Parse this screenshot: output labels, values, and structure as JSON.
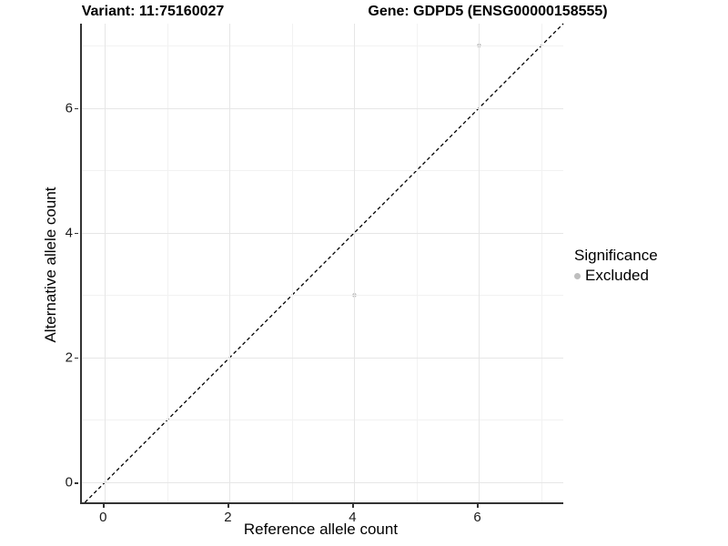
{
  "titles": {
    "variant": "Variant: 11:75160027",
    "gene": "Gene: GDPD5 (ENSG00000158555)"
  },
  "chart_data": {
    "type": "scatter",
    "xlabel": "Reference allele count",
    "ylabel": "Alternative allele count",
    "xlim": [
      -0.37,
      7.35
    ],
    "ylim": [
      -0.32,
      7.35
    ],
    "x_major_ticks": [
      0,
      2,
      4,
      6
    ],
    "y_major_ticks": [
      0,
      2,
      4,
      6
    ],
    "x_minor_gridlines": [
      1,
      3,
      5,
      7
    ],
    "y_minor_gridlines": [
      1,
      3,
      5,
      7
    ],
    "grid": true,
    "series": [
      {
        "name": "Excluded",
        "color": "#bebebe",
        "points": [
          {
            "x": 6,
            "y": 7
          },
          {
            "x": 4,
            "y": 3
          }
        ]
      }
    ],
    "identity_line": {
      "type": "abline",
      "slope": 1,
      "intercept": 0,
      "style": "dashed",
      "color": "#000000"
    },
    "legend": {
      "title": "Significance",
      "position": "right",
      "entries": [
        {
          "label": "Excluded",
          "color": "#bebebe"
        }
      ]
    }
  },
  "colors": {
    "background": "#ffffff",
    "axis_line": "#333333",
    "grid_major": "#e6e6e6",
    "grid_minor": "#f2f2f2",
    "tick_text": "#1a1a1a",
    "point": "#bebebe"
  }
}
